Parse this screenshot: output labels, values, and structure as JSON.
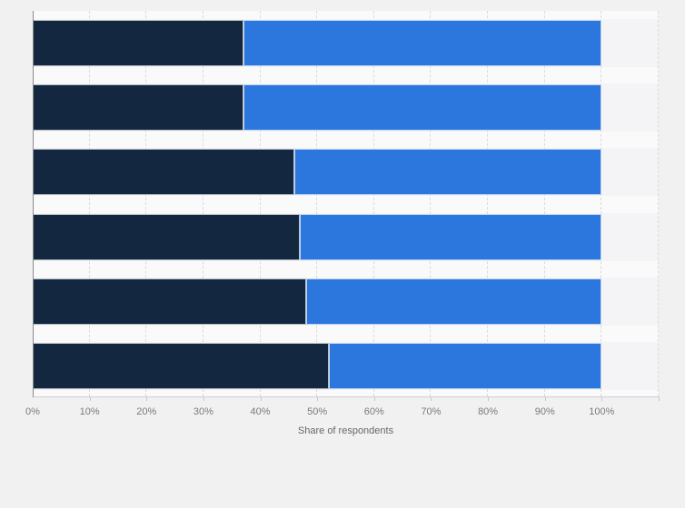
{
  "page": {
    "background": "#f1f1f2",
    "plot_background": "#fafafa"
  },
  "chart_data": {
    "type": "bar",
    "orientation": "horizontal",
    "stacked": true,
    "title": "",
    "xlabel": "Share of respondents",
    "ylabel": "",
    "categories": [
      "",
      "",
      "",
      "",
      "",
      ""
    ],
    "series": [
      {
        "name": "dark-navy-segment",
        "color": "#132840",
        "values": [
          37,
          37,
          46,
          47,
          48,
          52
        ]
      },
      {
        "name": "blue-segment",
        "color": "#2c77dd",
        "values": [
          63,
          63,
          54,
          53,
          52,
          48
        ]
      }
    ],
    "x_tick_labels": [
      "0%",
      "10%",
      "20%",
      "30%",
      "40%",
      "50%",
      "60%",
      "70%",
      "80%",
      "90%",
      "100%"
    ],
    "x_tick_step_percent": 10,
    "xlim": [
      0,
      110
    ],
    "grid": "vertical-dashed",
    "legend": "none"
  }
}
